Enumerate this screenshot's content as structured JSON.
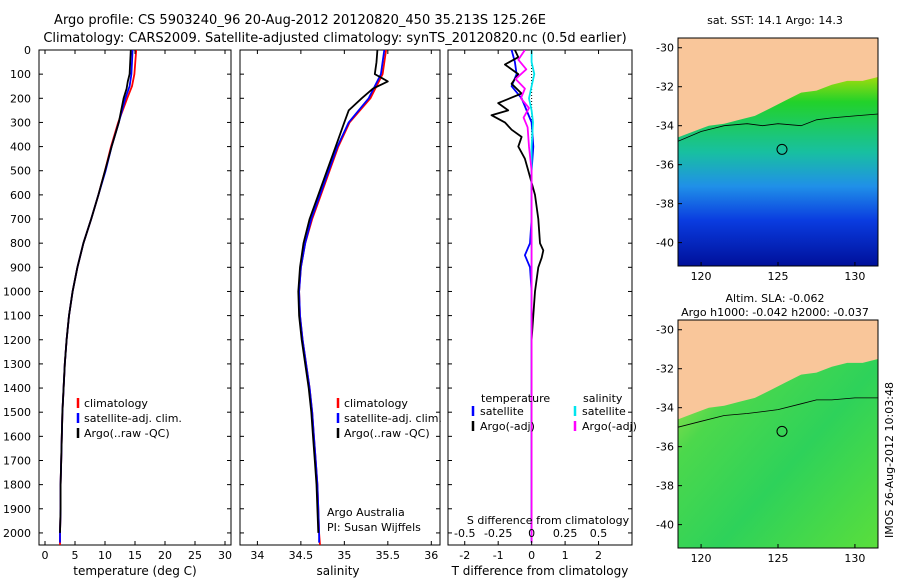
{
  "title": {
    "line1": "Argo profile: CS 5903240_96 20-Aug-2012 20120820_450 35.213S 125.26E",
    "line2": "Climatology: CARS2009. Satellite-adjusted climatology: synTS_20120820.nc (0.5d earlier)"
  },
  "colors": {
    "climatology": "#ff0000",
    "satellite": "#0000ff",
    "argo": "#000000",
    "satellite_s": "#00e5ee",
    "argo_s": "#ff00ff",
    "land": "#f9c69a"
  },
  "depth_axis": {
    "range": [
      0,
      2050
    ],
    "ticks": [
      "0",
      "100",
      "200",
      "300",
      "400",
      "500",
      "600",
      "700",
      "800",
      "900",
      "1000",
      "1100",
      "1200",
      "1300",
      "1400",
      "1500",
      "1600",
      "1700",
      "1800",
      "1900",
      "2000"
    ]
  },
  "annotations": {
    "argo_australia": "Argo Australia",
    "pi": "PI: Susan Wijffels",
    "sst_title": "sat. SST: 14.1  Argo: 14.3",
    "sla_title1": "Altim. SLA: -0.062",
    "sla_title2": "Argo h1000: -0.042 h2000: -0.037",
    "timestamp": "IMOS 26-Aug-2012 10:03:48"
  },
  "chart_data": [
    {
      "type": "line",
      "panel": "temperature",
      "xlabel": "temperature (deg C)",
      "xlim": [
        -1,
        31
      ],
      "xticks": [
        "0",
        "5",
        "10",
        "15",
        "20",
        "25",
        "30"
      ],
      "ylim": [
        0,
        2050
      ],
      "legend": [
        "climatology",
        "satellite-adj. clim.",
        "Argo(..raw -QC)"
      ],
      "series": [
        {
          "name": "climatology",
          "depth": [
            0,
            100,
            150,
            200,
            300,
            400,
            500,
            600,
            700,
            800,
            900,
            1000,
            1100,
            1200,
            1300,
            1400,
            1500,
            1600,
            1700,
            1800,
            1900,
            2000,
            2050
          ],
          "values": [
            15.2,
            14.9,
            14.5,
            13.7,
            12.2,
            11.0,
            10.0,
            8.9,
            7.7,
            6.4,
            5.4,
            4.6,
            4.0,
            3.6,
            3.3,
            3.1,
            2.9,
            2.8,
            2.7,
            2.6,
            2.6,
            2.5,
            2.5
          ]
        },
        {
          "name": "satellite-adj. clim.",
          "depth": [
            0,
            100,
            150,
            200,
            300,
            400,
            500,
            600,
            700,
            800,
            900,
            1000,
            1100,
            1200,
            1300,
            1400,
            1500,
            1600,
            1700,
            1800,
            1900,
            2000,
            2040
          ],
          "values": [
            14.6,
            14.4,
            14.1,
            13.4,
            12.3,
            11.1,
            10.1,
            8.9,
            7.7,
            6.4,
            5.4,
            4.6,
            4.0,
            3.6,
            3.3,
            3.1,
            2.9,
            2.8,
            2.7,
            2.6,
            2.6,
            2.5,
            2.5
          ]
        },
        {
          "name": "Argo(..raw -QC)",
          "depth": [
            0,
            50,
            100,
            130,
            160,
            200,
            300,
            400,
            500,
            600,
            700,
            800,
            900,
            1000,
            1100,
            1200,
            1300,
            1400,
            1500,
            1600,
            1700,
            1800,
            1900,
            2000
          ],
          "values": [
            14.3,
            14.2,
            14.1,
            13.8,
            13.6,
            13.1,
            12.3,
            11.1,
            10.0,
            8.9,
            7.7,
            6.4,
            5.4,
            4.6,
            4.0,
            3.6,
            3.3,
            3.1,
            2.9,
            2.8,
            2.7,
            2.6,
            2.6,
            2.5
          ]
        }
      ]
    },
    {
      "type": "line",
      "panel": "salinity",
      "xlabel": "salinity",
      "xlim": [
        33.8,
        36.1
      ],
      "xticks": [
        "34",
        "34.5",
        "35",
        "35.5",
        "36"
      ],
      "ylim": [
        0,
        2050
      ],
      "legend": [
        "climatology",
        "satellite-adj. clim.",
        "Argo(..raw -QC)"
      ],
      "series": [
        {
          "name": "climatology",
          "depth": [
            0,
            100,
            200,
            300,
            400,
            500,
            600,
            700,
            800,
            900,
            1000,
            1100,
            1200,
            1300,
            1400,
            1500,
            1600,
            1700,
            1800,
            1900,
            2000,
            2050
          ],
          "values": [
            35.48,
            35.44,
            35.3,
            35.06,
            34.93,
            34.83,
            34.73,
            34.63,
            34.55,
            34.5,
            34.48,
            34.49,
            34.52,
            34.56,
            34.6,
            34.63,
            34.65,
            34.67,
            34.69,
            34.7,
            34.71,
            34.72
          ]
        },
        {
          "name": "satellite-adj. clim.",
          "depth": [
            0,
            100,
            200,
            300,
            400,
            500,
            600,
            700,
            800,
            900,
            1000,
            1100,
            1200,
            1300,
            1400,
            1500,
            1600,
            1700,
            1800,
            1900,
            2000,
            2040
          ],
          "values": [
            35.46,
            35.42,
            35.28,
            35.05,
            34.92,
            34.82,
            34.72,
            34.62,
            34.55,
            34.5,
            34.48,
            34.49,
            34.52,
            34.56,
            34.6,
            34.63,
            34.65,
            34.67,
            34.69,
            34.7,
            34.71,
            34.71
          ]
        },
        {
          "name": "Argo(..raw -QC)",
          "depth": [
            0,
            50,
            100,
            130,
            160,
            200,
            250,
            300,
            400,
            500,
            600,
            700,
            800,
            900,
            1000,
            1100,
            1200,
            1300,
            1400,
            1500,
            1600,
            1700,
            1800,
            1900,
            2000
          ],
          "values": [
            35.38,
            35.37,
            35.35,
            35.5,
            35.33,
            35.2,
            35.05,
            35.0,
            34.9,
            34.8,
            34.7,
            34.6,
            34.53,
            34.49,
            34.47,
            34.48,
            34.51,
            34.55,
            34.59,
            34.62,
            34.64,
            34.66,
            34.68,
            34.69,
            34.7
          ]
        }
      ]
    },
    {
      "type": "line",
      "panel": "difference",
      "xlabel": "T difference from climatology",
      "xlabel2": "S difference from climatology",
      "xlim": [
        -2.5,
        3.0
      ],
      "xticks": [
        "-2",
        "-1",
        "0",
        "1",
        "2"
      ],
      "xticks2": [
        "-0.5",
        "-0.25",
        "0",
        "0.25",
        "0.5"
      ],
      "ylim": [
        0,
        2050
      ],
      "legend_headers": [
        "temperature",
        "salinity"
      ],
      "legend": [
        "satellite",
        "Argo(-adj)",
        "satellite",
        "Argo(-adj)"
      ],
      "series": [
        {
          "name": "T satellite",
          "depth": [
            0,
            50,
            100,
            150,
            200,
            250,
            300,
            400,
            500,
            600,
            700,
            800,
            850,
            900,
            1000,
            1100,
            1200,
            1500,
            2000,
            2040
          ],
          "values": [
            -0.6,
            -0.5,
            -0.45,
            -0.6,
            -0.3,
            -0.15,
            0.0,
            0.05,
            0.0,
            0.0,
            0.0,
            -0.05,
            -0.2,
            -0.05,
            0.0,
            0.0,
            0.0,
            0.0,
            0.0,
            0.0
          ]
        },
        {
          "name": "T Argo(-adj)",
          "depth": [
            0,
            30,
            60,
            100,
            140,
            180,
            220,
            250,
            270,
            300,
            330,
            360,
            400,
            450,
            500,
            600,
            700,
            800,
            830,
            860,
            900,
            1000,
            1100,
            1200,
            1400,
            1600,
            1800,
            2000
          ],
          "values": [
            -0.5,
            -0.4,
            -0.8,
            -0.4,
            -0.6,
            -0.3,
            -1.0,
            -0.7,
            -1.2,
            -0.8,
            -0.6,
            -0.3,
            -0.4,
            -0.2,
            -0.1,
            0.1,
            0.2,
            0.25,
            0.35,
            0.3,
            0.2,
            0.1,
            0.05,
            0.0,
            0.0,
            0.0,
            0.0,
            0.0
          ]
        },
        {
          "name": "S satellite",
          "depth": [
            0,
            50,
            100,
            150,
            200,
            250,
            300,
            400,
            500,
            600,
            800,
            1000,
            1500,
            2040
          ],
          "values": [
            0.0,
            0.0,
            0.02,
            0.0,
            -0.02,
            0.0,
            0.01,
            0.0,
            0.0,
            0.0,
            0.0,
            0.0,
            0.0,
            0.0
          ]
        },
        {
          "name": "S Argo(-adj)",
          "depth": [
            0,
            40,
            80,
            120,
            160,
            200,
            240,
            280,
            320,
            400,
            500,
            600,
            800,
            1000,
            1200,
            1500,
            2040
          ],
          "values": [
            -0.05,
            -0.1,
            -0.04,
            -0.12,
            -0.05,
            -0.08,
            -0.02,
            -0.06,
            -0.03,
            -0.02,
            0.0,
            0.0,
            0.0,
            0.0,
            0.0,
            0.0,
            0.0
          ]
        }
      ]
    },
    {
      "type": "heatmap",
      "panel": "sst_map",
      "title": "sat. SST: 14.1  Argo: 14.3",
      "xlim": [
        118.5,
        131.5
      ],
      "ylim": [
        -41.2,
        -29.5
      ],
      "xticks": [
        "120",
        "125",
        "130"
      ],
      "yticks": [
        "-30",
        "-32",
        "-34",
        "-36",
        "-38",
        "-40"
      ],
      "float_position": [
        125.26,
        -35.213
      ]
    },
    {
      "type": "heatmap",
      "panel": "sla_map",
      "title": "Altim. SLA: -0.062",
      "subtitle": "Argo h1000: -0.042 h2000: -0.037",
      "xlim": [
        118.5,
        131.5
      ],
      "ylim": [
        -41.2,
        -29.5
      ],
      "xticks": [
        "120",
        "125",
        "130"
      ],
      "yticks": [
        "-30",
        "-32",
        "-34",
        "-36",
        "-38",
        "-40"
      ],
      "float_position": [
        125.26,
        -35.213
      ]
    }
  ]
}
